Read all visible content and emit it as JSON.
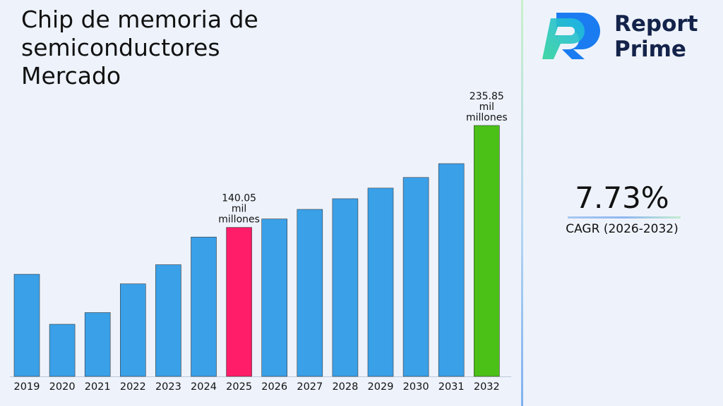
{
  "title": "Chip de memoria de\nsemiconductores\nMercado",
  "brand": {
    "line1": "Report",
    "line2": "Prime",
    "logo_icon": "report-prime-r-logo"
  },
  "cagr": {
    "value": "7.73%",
    "label": "CAGR (2026-2032)"
  },
  "colors": {
    "bar": "#3aa0e8",
    "highlight_2025": "#ff1c68",
    "highlight_2032": "#4bc017"
  },
  "chart_data": {
    "type": "bar",
    "title": "Chip de memoria de semiconductores Mercado",
    "categories": [
      "2019",
      "2020",
      "2021",
      "2022",
      "2023",
      "2024",
      "2025",
      "2026",
      "2027",
      "2028",
      "2029",
      "2030",
      "2031",
      "2032"
    ],
    "values": [
      96,
      49,
      60,
      87,
      105,
      131,
      140.05,
      148,
      157,
      167,
      177,
      187,
      200,
      235.85
    ],
    "highlight": {
      "2025": "highlight_2025",
      "2032": "highlight_2032"
    },
    "annotations": [
      {
        "category": "2025",
        "value": "140.05",
        "unit1": "mil",
        "unit2": "millones"
      },
      {
        "category": "2032",
        "value": "235.85",
        "unit1": "mil",
        "unit2": "millones"
      }
    ],
    "ylim": [
      0,
      235.85
    ],
    "grid": false,
    "legend": "none"
  }
}
